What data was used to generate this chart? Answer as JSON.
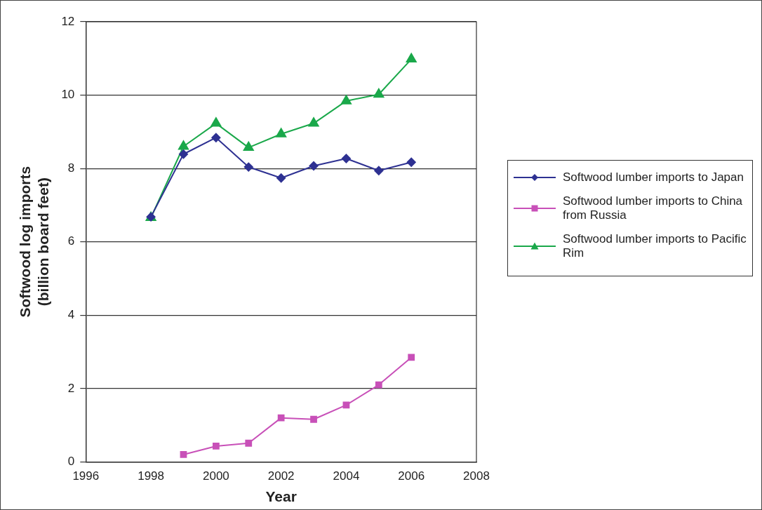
{
  "chart_data": {
    "type": "line",
    "xlabel": "Year",
    "ylabel": "Softwood log imports\n(billion board feet)",
    "x": [
      1998,
      1999,
      2000,
      2001,
      2002,
      2003,
      2004,
      2005,
      2006
    ],
    "series": [
      {
        "name": "Softwood lumber imports to Japan",
        "color": "#2e3192",
        "marker": "diamond",
        "values": [
          6.68,
          8.39,
          8.84,
          8.04,
          7.74,
          8.07,
          8.27,
          7.94,
          8.17
        ]
      },
      {
        "name": "Softwood lumber imports to China from Russia",
        "color": "#c850b8",
        "marker": "square",
        "values": [
          null,
          0.2,
          0.43,
          0.51,
          1.2,
          1.16,
          1.55,
          2.1,
          2.85
        ]
      },
      {
        "name": "Softwood lumber imports to Pacific Rim",
        "color": "#1aa84a",
        "marker": "triangle",
        "values": [
          6.66,
          8.6,
          9.23,
          8.57,
          8.94,
          9.23,
          9.84,
          10.02,
          10.98
        ]
      }
    ],
    "xlim": [
      1996,
      2008
    ],
    "xticks": [
      1996,
      1998,
      2000,
      2002,
      2004,
      2006,
      2008
    ],
    "ylim": [
      0,
      12
    ],
    "yticks": [
      0,
      2,
      4,
      6,
      8,
      10,
      12
    ],
    "grid": "y",
    "legend": "right",
    "line_style": "solid"
  }
}
